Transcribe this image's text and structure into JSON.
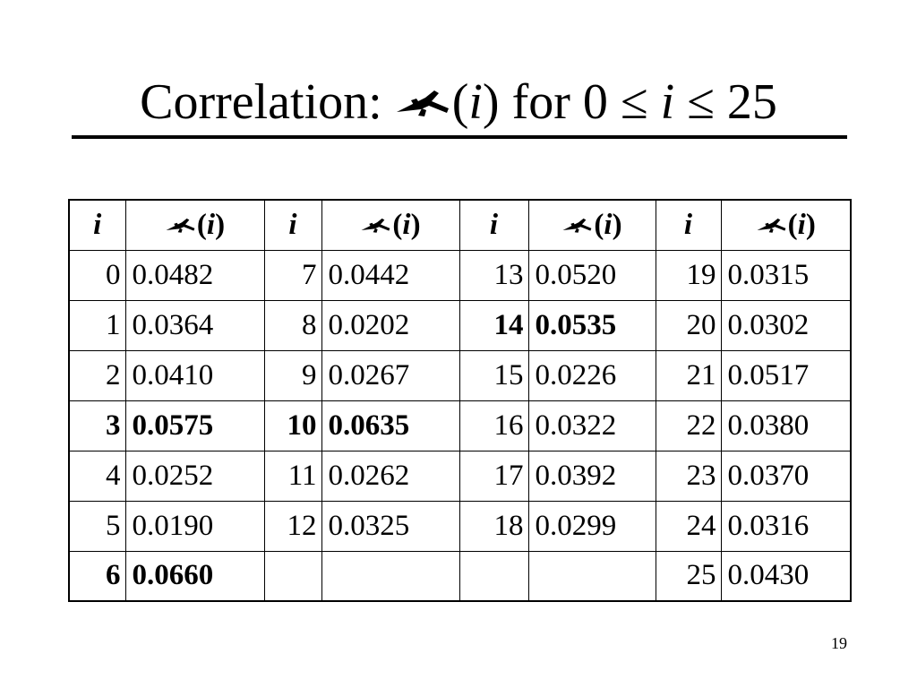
{
  "slide": {
    "title": {
      "prefix": "Correlation: ",
      "symbol": "rho-symbol-icon",
      "arg_open": "(",
      "arg_var": "i",
      "arg_close": ")",
      "middle": " for 0 ≤ ",
      "var2": "i",
      "suffix": " ≤ 25"
    },
    "page_number": "19"
  },
  "table": {
    "header": {
      "index_label": "i",
      "value_open": "(",
      "value_var": "i",
      "value_close": ")"
    },
    "rows": [
      [
        {
          "i": "0",
          "v": "0.0482",
          "bold": false
        },
        {
          "i": "7",
          "v": "0.0442",
          "bold": false
        },
        {
          "i": "13",
          "v": "0.0520",
          "bold": false
        },
        {
          "i": "19",
          "v": "0.0315",
          "bold": false
        }
      ],
      [
        {
          "i": "1",
          "v": "0.0364",
          "bold": false
        },
        {
          "i": "8",
          "v": "0.0202",
          "bold": false
        },
        {
          "i": "14",
          "v": "0.0535",
          "bold": true
        },
        {
          "i": "20",
          "v": "0.0302",
          "bold": false
        }
      ],
      [
        {
          "i": "2",
          "v": "0.0410",
          "bold": false
        },
        {
          "i": "9",
          "v": "0.0267",
          "bold": false
        },
        {
          "i": "15",
          "v": "0.0226",
          "bold": false
        },
        {
          "i": "21",
          "v": "0.0517",
          "bold": false
        }
      ],
      [
        {
          "i": "3",
          "v": "0.0575",
          "bold": true
        },
        {
          "i": "10",
          "v": "0.0635",
          "bold": true
        },
        {
          "i": "16",
          "v": "0.0322",
          "bold": false
        },
        {
          "i": "22",
          "v": "0.0380",
          "bold": false
        }
      ],
      [
        {
          "i": "4",
          "v": "0.0252",
          "bold": false
        },
        {
          "i": "11",
          "v": "0.0262",
          "bold": false
        },
        {
          "i": "17",
          "v": "0.0392",
          "bold": false
        },
        {
          "i": "23",
          "v": "0.0370",
          "bold": false
        }
      ],
      [
        {
          "i": "5",
          "v": "0.0190",
          "bold": false
        },
        {
          "i": "12",
          "v": "0.0325",
          "bold": false
        },
        {
          "i": "18",
          "v": "0.0299",
          "bold": false
        },
        {
          "i": "24",
          "v": "0.0316",
          "bold": false
        }
      ],
      [
        {
          "i": "6",
          "v": "0.0660",
          "bold": true
        },
        {
          "i": "",
          "v": "",
          "bold": false
        },
        {
          "i": "",
          "v": "",
          "bold": false
        },
        {
          "i": "25",
          "v": "0.0430",
          "bold": false
        }
      ]
    ]
  }
}
